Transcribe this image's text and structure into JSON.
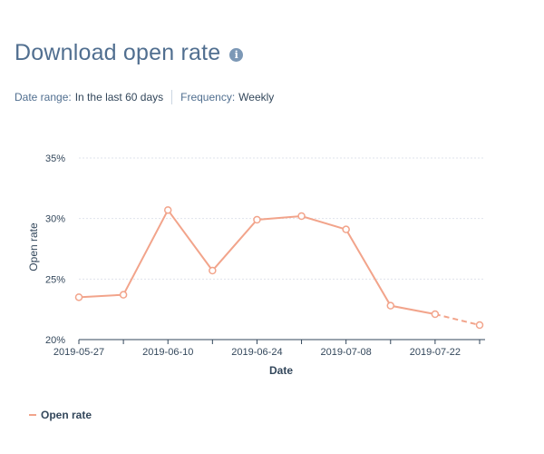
{
  "header": {
    "title": "Download open rate",
    "info_icon": "info-icon"
  },
  "filters": {
    "date_range_label": "Date range:",
    "date_range_value": "In the last 60 days",
    "frequency_label": "Frequency:",
    "frequency_value": "Weekly"
  },
  "chart_data": {
    "type": "line",
    "xlabel": "Date",
    "ylabel": "Open rate",
    "ylim": [
      20,
      35
    ],
    "yticks": [
      20,
      25,
      30,
      35
    ],
    "ytick_labels": [
      "20%",
      "25%",
      "30%",
      "35%"
    ],
    "x": [
      "2019-05-27",
      "2019-06-03",
      "2019-06-10",
      "2019-06-17",
      "2019-06-24",
      "2019-07-01",
      "2019-07-08",
      "2019-07-15",
      "2019-07-22",
      "2019-07-29"
    ],
    "xtick_labels": [
      "2019-05-27",
      "",
      "2019-06-10",
      "",
      "2019-06-24",
      "",
      "2019-07-08",
      "",
      "2019-07-22",
      ""
    ],
    "series": [
      {
        "name": "Open rate",
        "values": [
          23.5,
          23.7,
          30.7,
          25.7,
          29.9,
          30.2,
          29.1,
          22.8,
          22.1,
          21.2
        ],
        "dashed_last_segment": true,
        "color": "#f2a48b"
      }
    ],
    "grid": true,
    "legend_position": "bottom-left"
  },
  "legend": {
    "label": "Open rate"
  }
}
